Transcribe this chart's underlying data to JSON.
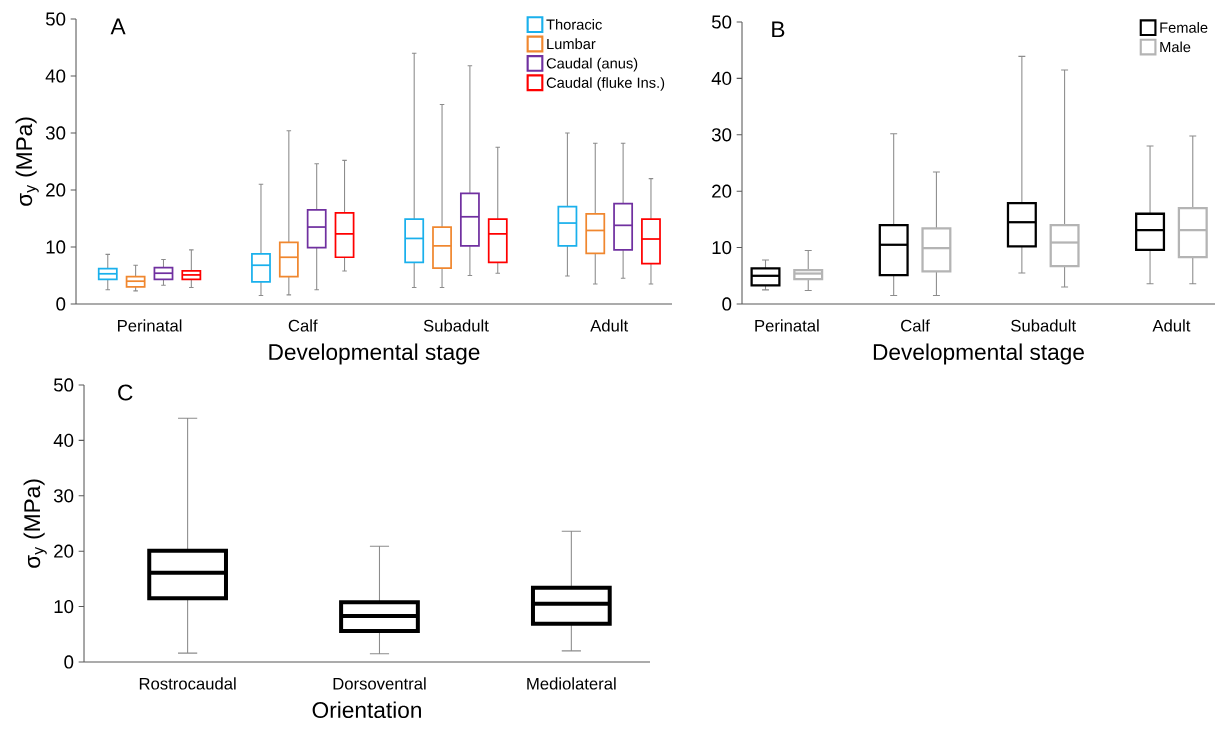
{
  "chart_data": [
    {
      "type": "box",
      "title": "A",
      "xlabel": "Developmental stage",
      "ylabel": "σ$_{y}$ (MPa)",
      "categories": [
        "Perinatal",
        "Calf",
        "Subadult",
        "Adult"
      ],
      "ylim": [
        0,
        50
      ],
      "yticks": [
        0,
        10,
        20,
        30,
        40,
        50
      ],
      "legend": "top right",
      "series": [
        {
          "name": "Thoracic",
          "color": "#1ab0ec",
          "boxes": [
            {
              "low": 2.5,
              "q1": 4.3,
              "median": 5.3,
              "q3": 6.2,
              "high": 8.7
            },
            {
              "low": 1.5,
              "q1": 3.9,
              "median": 6.8,
              "q3": 8.8,
              "high": 21
            },
            {
              "low": 2.9,
              "q1": 7.3,
              "median": 11.5,
              "q3": 14.9,
              "high": 44
            },
            {
              "low": 4.9,
              "q1": 10.2,
              "median": 14.2,
              "q3": 17.1,
              "high": 30
            }
          ]
        },
        {
          "name": "Lumbar",
          "color": "#f0872f",
          "boxes": [
            {
              "low": 2.3,
              "q1": 3.0,
              "median": 4.0,
              "q3": 4.8,
              "high": 6.8
            },
            {
              "low": 1.6,
              "q1": 4.8,
              "median": 8.2,
              "q3": 10.8,
              "high": 30.4
            },
            {
              "low": 2.9,
              "q1": 6.3,
              "median": 10.2,
              "q3": 13.5,
              "high": 35
            },
            {
              "low": 3.5,
              "q1": 8.9,
              "median": 12.9,
              "q3": 15.8,
              "high": 28.2
            }
          ]
        },
        {
          "name": "Caudal (anus)",
          "color": "#7030a0",
          "boxes": [
            {
              "low": 3.3,
              "q1": 4.3,
              "median": 5.4,
              "q3": 6.4,
              "high": 7.8
            },
            {
              "low": 2.5,
              "q1": 9.9,
              "median": 13.5,
              "q3": 16.5,
              "high": 24.6
            },
            {
              "low": 5.0,
              "q1": 10.2,
              "median": 15.3,
              "q3": 19.4,
              "high": 41.8
            },
            {
              "low": 4.5,
              "q1": 9.5,
              "median": 13.8,
              "q3": 17.6,
              "high": 28.2
            }
          ]
        },
        {
          "name": "Caudal (fluke Ins.)",
          "color": "#ff0000",
          "boxes": [
            {
              "low": 2.9,
              "q1": 4.3,
              "median": 5.1,
              "q3": 5.8,
              "high": 9.5
            },
            {
              "low": 5.8,
              "q1": 8.2,
              "median": 12.3,
              "q3": 16.0,
              "high": 25.2
            },
            {
              "low": 5.4,
              "q1": 7.3,
              "median": 12.3,
              "q3": 14.9,
              "high": 27.5
            },
            {
              "low": 3.5,
              "q1": 7.1,
              "median": 11.4,
              "q3": 14.9,
              "high": 22
            }
          ]
        }
      ]
    },
    {
      "type": "box",
      "title": "B",
      "xlabel": "Developmental stage",
      "categories": [
        "Perinatal",
        "Calf",
        "Subadult",
        "Adult"
      ],
      "ylim": [
        0,
        50
      ],
      "yticks": [
        0,
        10,
        20,
        30,
        40,
        50
      ],
      "legend": "top right",
      "series": [
        {
          "name": "Female",
          "color": "#000000",
          "boxes": [
            {
              "low": 2.5,
              "q1": 3.3,
              "median": 5.0,
              "q3": 6.3,
              "high": 7.8
            },
            {
              "low": 1.5,
              "q1": 5.1,
              "median": 10.5,
              "q3": 14.0,
              "high": 30.2
            },
            {
              "low": 5.5,
              "q1": 10.2,
              "median": 14.5,
              "q3": 17.9,
              "high": 43.9
            },
            {
              "low": 3.6,
              "q1": 9.6,
              "median": 13.1,
              "q3": 16.0,
              "high": 28.0
            }
          ]
        },
        {
          "name": "Male",
          "color": "#b4b4b4",
          "boxes": [
            {
              "low": 2.4,
              "q1": 4.4,
              "median": 5.4,
              "q3": 6.0,
              "high": 9.5
            },
            {
              "low": 1.5,
              "q1": 5.8,
              "median": 9.9,
              "q3": 13.4,
              "high": 23.4
            },
            {
              "low": 3.0,
              "q1": 6.7,
              "median": 10.9,
              "q3": 14.0,
              "high": 41.5
            },
            {
              "low": 3.6,
              "q1": 8.3,
              "median": 13.1,
              "q3": 17.0,
              "high": 29.8
            }
          ]
        }
      ]
    },
    {
      "type": "box",
      "title": "C",
      "xlabel": "Orientation",
      "ylabel": "σ$_{y}$ (MPa)",
      "categories": [
        "Rostrocaudal",
        "Dorsoventral",
        "Mediolateral"
      ],
      "ylim": [
        0,
        50
      ],
      "yticks": [
        0,
        10,
        20,
        30,
        40,
        50
      ],
      "series": [
        {
          "color": "#000000",
          "boxes": [
            {
              "low": 1.6,
              "q1": 11.5,
              "median": 16.1,
              "q3": 20.1,
              "high": 44
            },
            {
              "low": 1.5,
              "q1": 5.6,
              "median": 8.3,
              "q3": 10.8,
              "high": 20.9
            },
            {
              "low": 2.0,
              "q1": 6.9,
              "median": 10.5,
              "q3": 13.4,
              "high": 23.6
            }
          ]
        }
      ]
    }
  ]
}
